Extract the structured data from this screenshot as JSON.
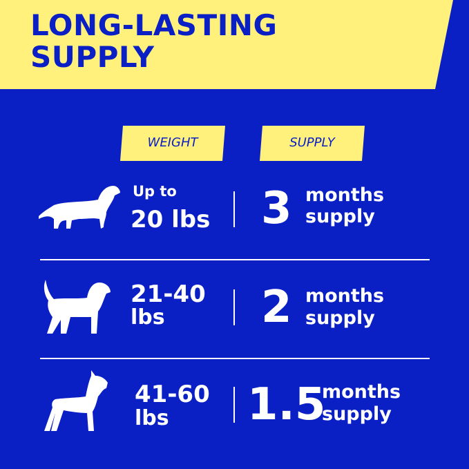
{
  "title": "LONG-LASTING SUPPLY",
  "colors": {
    "background": "#0a1fc4",
    "accent_yellow": "#fff17c",
    "text": "#ffffff"
  },
  "headers": {
    "weight": "WEIGHT",
    "supply": "SUPPLY"
  },
  "rows": [
    {
      "icon": "small-dog-dachshund-icon",
      "weight_line1": "Up to",
      "weight_line2": "20 lbs",
      "amount": "3",
      "unit_line1": "months",
      "unit_line2": "supply"
    },
    {
      "icon": "medium-dog-beagle-icon",
      "weight_line1": "21-40",
      "weight_line2": "lbs",
      "amount": "2",
      "unit_line1": "months",
      "unit_line2": "supply"
    },
    {
      "icon": "large-dog-boxer-icon",
      "weight_line1": "41-60",
      "weight_line2": "lbs",
      "amount": "1.5",
      "unit_line1": "months",
      "unit_line2": "supply"
    }
  ]
}
